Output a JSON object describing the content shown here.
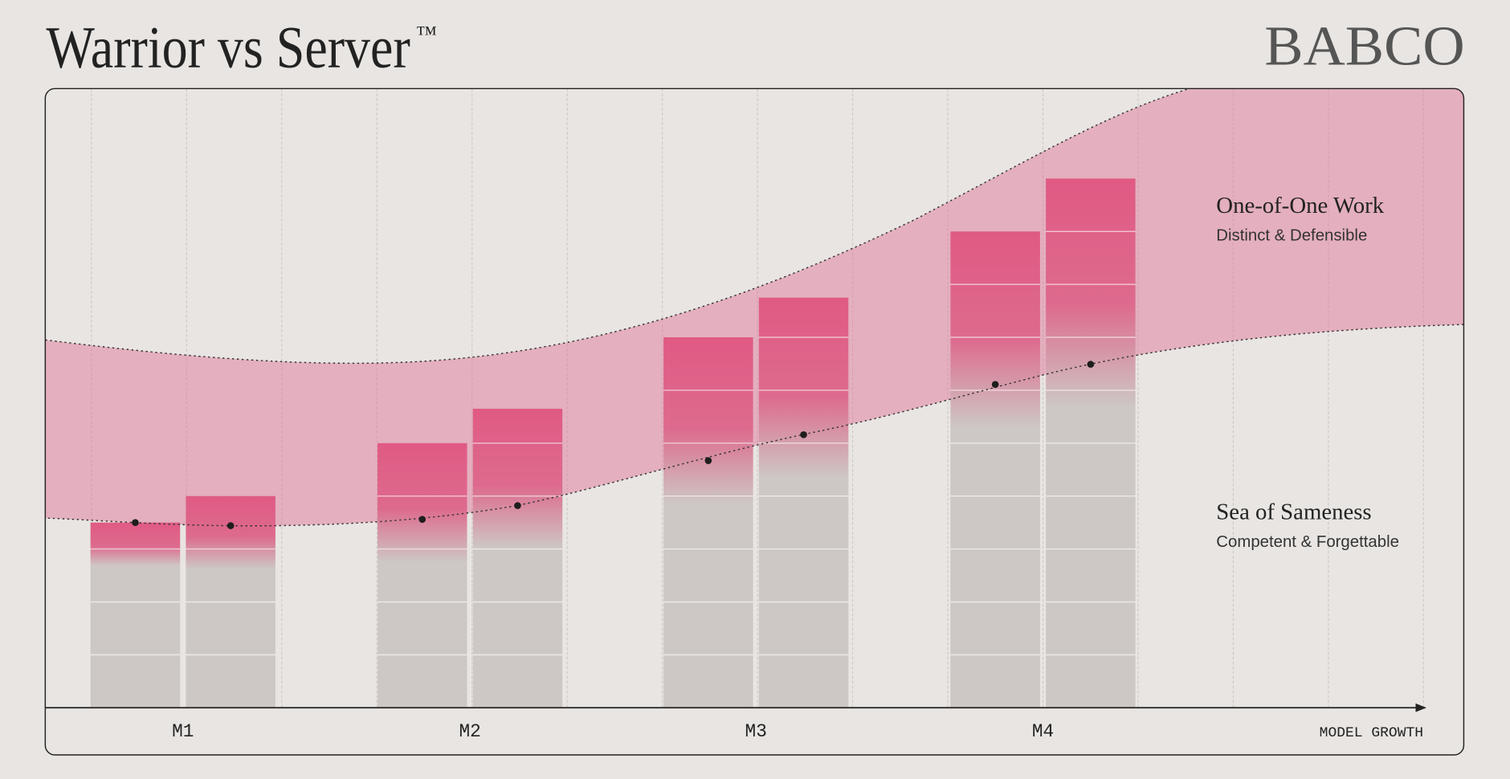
{
  "chart_data": {
    "type": "bar",
    "title": "Warrior vs Server",
    "title_mark": "™",
    "brand": "BABCO",
    "categories": [
      "M1",
      "M2",
      "M3",
      "M4"
    ],
    "x_label": "MODEL GROWTH",
    "ylim": [
      0,
      11.7
    ],
    "series": [
      {
        "color": "#e05a84",
        "values": [
          3.5,
          5,
          7,
          9
        ]
      },
      {
        "color": "#e05a84",
        "values": [
          4,
          5.65,
          7.75,
          10
        ]
      }
    ],
    "threshold": [
      {
        "values": [
          3.5,
          3.56,
          4.67,
          6.11
        ]
      },
      {
        "values": [
          3.44,
          3.82,
          5.16,
          6.49
        ]
      }
    ],
    "zones": [
      {
        "title": "One-of-One Work",
        "subtitle": "Distinct & Defensible"
      },
      {
        "title": "Sea of Sameness",
        "subtitle": "Competent & Forgettable"
      }
    ]
  }
}
